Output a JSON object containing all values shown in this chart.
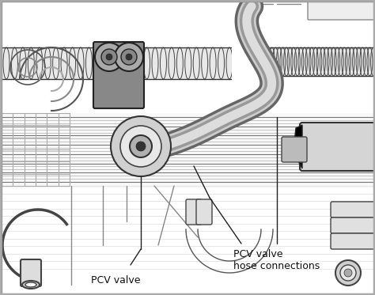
{
  "bg_color": "#f5f5f5",
  "border_color": "#aaaaaa",
  "fig_width": 4.74,
  "fig_height": 3.73,
  "dpi": 100,
  "label1": "PCV valve",
  "label2_line1": "PCV valve",
  "label2_line2": "hose connections",
  "lc": "#222222",
  "gray_light": "#cccccc",
  "gray_mid": "#999999",
  "gray_dark": "#555555",
  "white": "#ffffff",
  "hose_gray": "#aaaaaa",
  "hose_gray_dark": "#888888",
  "font_size": 9
}
